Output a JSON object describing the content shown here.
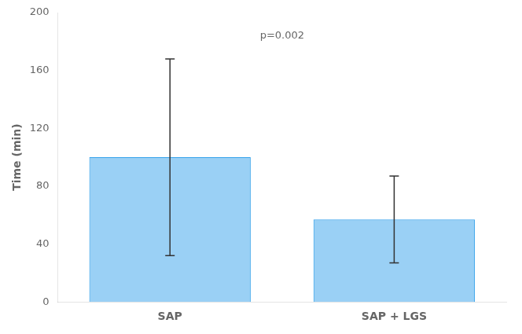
{
  "chart_data": {
    "type": "bar",
    "categories": [
      "SAP",
      "SAP + LGS"
    ],
    "values": [
      100,
      57
    ],
    "errors_lower": [
      68,
      30
    ],
    "errors_upper": [
      68,
      30
    ],
    "ylabel": "Time (min)",
    "ylim": [
      0,
      200
    ],
    "yticks": [
      0,
      40,
      80,
      120,
      160,
      200
    ],
    "annotation": "p=0.002",
    "grid": false
  }
}
